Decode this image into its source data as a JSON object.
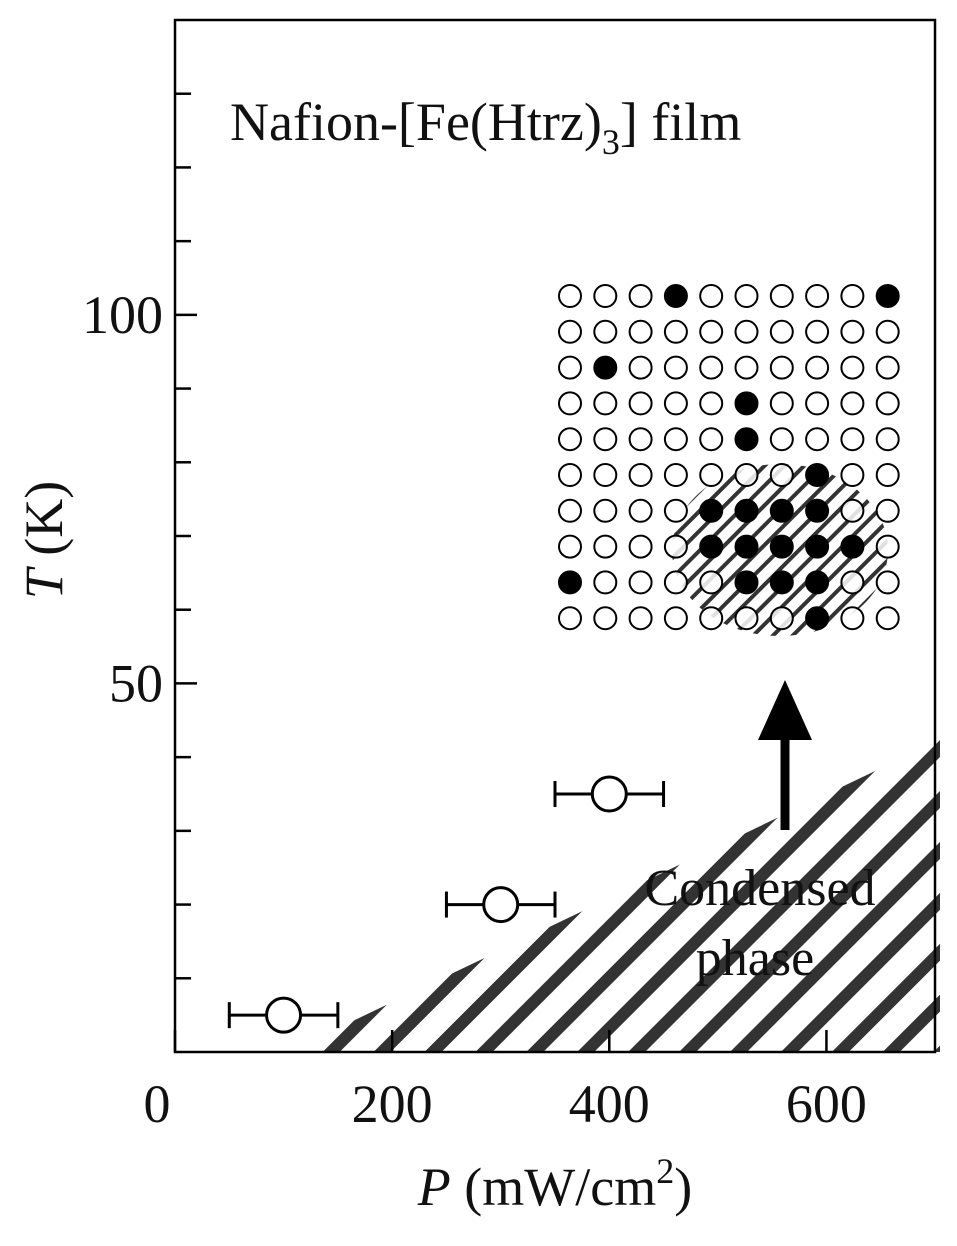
{
  "chart_data": {
    "type": "scatter",
    "title": "Nafion-[Fe(Htrz)",
    "title_subscript": "3",
    "title_end": "] film",
    "x_label": "P",
    "x_label_units": " (mW/cm",
    "x_label_superscript": "2",
    "x_label_end": ")",
    "y_label": "T",
    "y_label_units": " (K)",
    "annotation": [
      "Condensed",
      "phase"
    ],
    "xlim": [
      0,
      700
    ],
    "xticks": [
      0,
      200,
      400,
      600
    ],
    "ylim": [
      0,
      140
    ],
    "yticks": [
      50,
      100
    ],
    "y_minor_ticks": [
      10,
      20,
      30,
      40,
      60,
      70,
      80,
      90,
      110,
      120,
      130
    ],
    "series": [
      {
        "color": "#000000",
        "x": [
          100,
          300,
          400
        ],
        "y": [
          5,
          20,
          35
        ],
        "xerr": [
          50,
          50,
          50
        ]
      }
    ]
  }
}
